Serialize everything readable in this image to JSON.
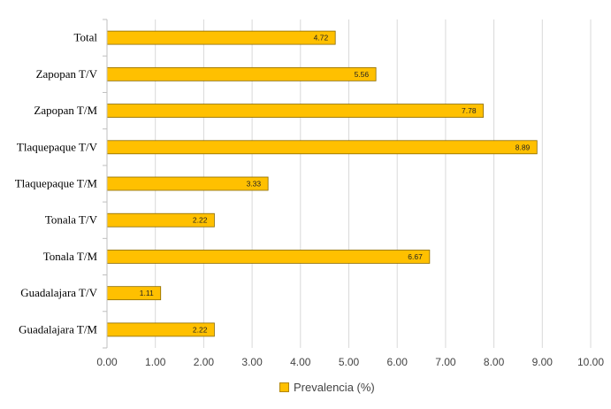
{
  "chart_data": {
    "type": "bar",
    "orientation": "horizontal",
    "categories": [
      "Total",
      "Zapopan T/V",
      "Zapopan T/M",
      "Tlaquepaque T/V",
      "Tlaquepaque T/M",
      "Tonala T/V",
      "Tonala T/M",
      "Guadalajara T/V",
      "Guadalajara T/M"
    ],
    "series": [
      {
        "name": "Prevalencia (%)",
        "values": [
          4.72,
          5.56,
          7.78,
          8.89,
          3.33,
          2.22,
          6.67,
          1.11,
          2.22
        ],
        "color": "#ffc000"
      }
    ],
    "value_labels": [
      "4.72",
      "5.56",
      "7.78",
      "8.89",
      "3.33",
      "2.22",
      "6.67",
      "1.11",
      "2.22"
    ],
    "xlim": [
      0,
      10
    ],
    "x_ticks": [
      "0.00",
      "1.00",
      "2.00",
      "3.00",
      "4.00",
      "5.00",
      "6.00",
      "7.00",
      "8.00",
      "9.00",
      "10.00"
    ],
    "grid": true,
    "legend_position": "bottom"
  }
}
